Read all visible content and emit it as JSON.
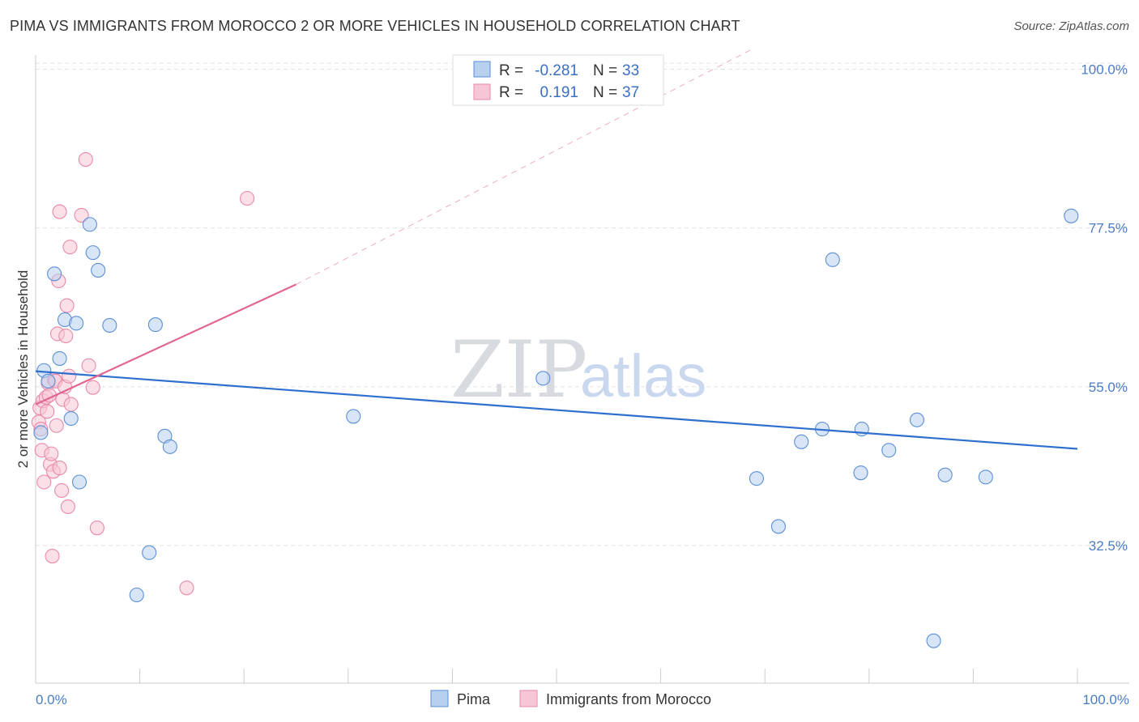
{
  "header": {
    "title": "PIMA VS IMMIGRANTS FROM MOROCCO 2 OR MORE VEHICLES IN HOUSEHOLD CORRELATION CHART",
    "source": "Source: ZipAtlas.com"
  },
  "watermark": {
    "part1": "ZIP",
    "part2": "atlas"
  },
  "chart_data": {
    "type": "scatter",
    "title": "PIMA VS IMMIGRANTS FROM MOROCCO 2 OR MORE VEHICLES IN HOUSEHOLD CORRELATION CHART",
    "xlabel": "",
    "ylabel": "2 or more Vehicles in Household",
    "xlim": [
      0,
      100
    ],
    "ylim": [
      13,
      102
    ],
    "x_tick_labels": {
      "left": "0.0%",
      "right": "100.0%"
    },
    "y_ticks": [
      {
        "value": 100,
        "label": "100.0%"
      },
      {
        "value": 77.5,
        "label": "77.5%"
      },
      {
        "value": 55,
        "label": "55.0%"
      },
      {
        "value": 32.5,
        "label": "32.5%"
      }
    ],
    "grid": "horizontal dashed",
    "legend": {
      "placement": "top-center",
      "entries": [
        {
          "r_label": "R =",
          "r_value": "-0.281",
          "n_label": "N =",
          "n_value": "33"
        },
        {
          "r_label": "R =",
          "r_value": "0.191",
          "n_label": "N =",
          "n_value": "37"
        }
      ]
    },
    "series": [
      {
        "name": "Pima",
        "color": "#5b8fd6",
        "fill": "#b8d0f0",
        "trend": {
          "x": [
            0,
            100
          ],
          "y": [
            57.2,
            46.2
          ],
          "dashed_extension": false
        },
        "points": [
          [
            0.5,
            48.5
          ],
          [
            0.8,
            57.3
          ],
          [
            1.2,
            55.8
          ],
          [
            1.8,
            71
          ],
          [
            2.3,
            59
          ],
          [
            2.8,
            64.5
          ],
          [
            3.4,
            50.5
          ],
          [
            3.9,
            64
          ],
          [
            4.2,
            41.5
          ],
          [
            5.2,
            78
          ],
          [
            5.5,
            74
          ],
          [
            6.0,
            71.5
          ],
          [
            7.1,
            63.7
          ],
          [
            9.7,
            25.5
          ],
          [
            10.9,
            31.5
          ],
          [
            11.5,
            63.8
          ],
          [
            12.4,
            48
          ],
          [
            12.9,
            46.5
          ],
          [
            30.5,
            50.8
          ],
          [
            48.7,
            56.2
          ],
          [
            69.2,
            42
          ],
          [
            71.3,
            35.2
          ],
          [
            73.5,
            47.2
          ],
          [
            75.5,
            49
          ],
          [
            76.5,
            73
          ],
          [
            79.2,
            42.8
          ],
          [
            79.3,
            49
          ],
          [
            81.9,
            46
          ],
          [
            84.6,
            50.3
          ],
          [
            86.2,
            19
          ],
          [
            87.3,
            42.5
          ],
          [
            91.2,
            42.2
          ],
          [
            99.4,
            79.2
          ]
        ]
      },
      {
        "name": "Immigrants from Morocco",
        "color": "#e98aa9",
        "fill": "#f7c6d6",
        "trend": {
          "x": [
            0,
            25
          ],
          "y": [
            52.5,
            69.5
          ],
          "dashed_extension": true,
          "dashed_to": [
            69,
            103
          ]
        },
        "points": [
          [
            0.3,
            50
          ],
          [
            0.4,
            52
          ],
          [
            0.5,
            49
          ],
          [
            0.6,
            46
          ],
          [
            0.7,
            53
          ],
          [
            0.8,
            41.5
          ],
          [
            1.0,
            53.5
          ],
          [
            1.1,
            51.5
          ],
          [
            1.2,
            55.5
          ],
          [
            1.3,
            53.8
          ],
          [
            1.4,
            44
          ],
          [
            1.6,
            31
          ],
          [
            1.7,
            43
          ],
          [
            1.8,
            56
          ],
          [
            1.9,
            55.8
          ],
          [
            2.0,
            49.5
          ],
          [
            2.1,
            62.5
          ],
          [
            2.2,
            70
          ],
          [
            2.3,
            79.8
          ],
          [
            2.3,
            43.5
          ],
          [
            2.5,
            40.3
          ],
          [
            2.6,
            53.2
          ],
          [
            2.8,
            55
          ],
          [
            2.9,
            62.2
          ],
          [
            3.0,
            66.5
          ],
          [
            3.1,
            38
          ],
          [
            3.2,
            56.5
          ],
          [
            3.3,
            74.8
          ],
          [
            3.4,
            52.5
          ],
          [
            4.4,
            79.3
          ],
          [
            4.8,
            87.2
          ],
          [
            5.1,
            58
          ],
          [
            5.5,
            54.9
          ],
          [
            5.9,
            35
          ],
          [
            14.5,
            26.5
          ],
          [
            20.3,
            81.7
          ],
          [
            1.5,
            45.5
          ]
        ]
      }
    ],
    "bottom_legend": [
      "Pima",
      "Immigrants from Morocco"
    ]
  }
}
